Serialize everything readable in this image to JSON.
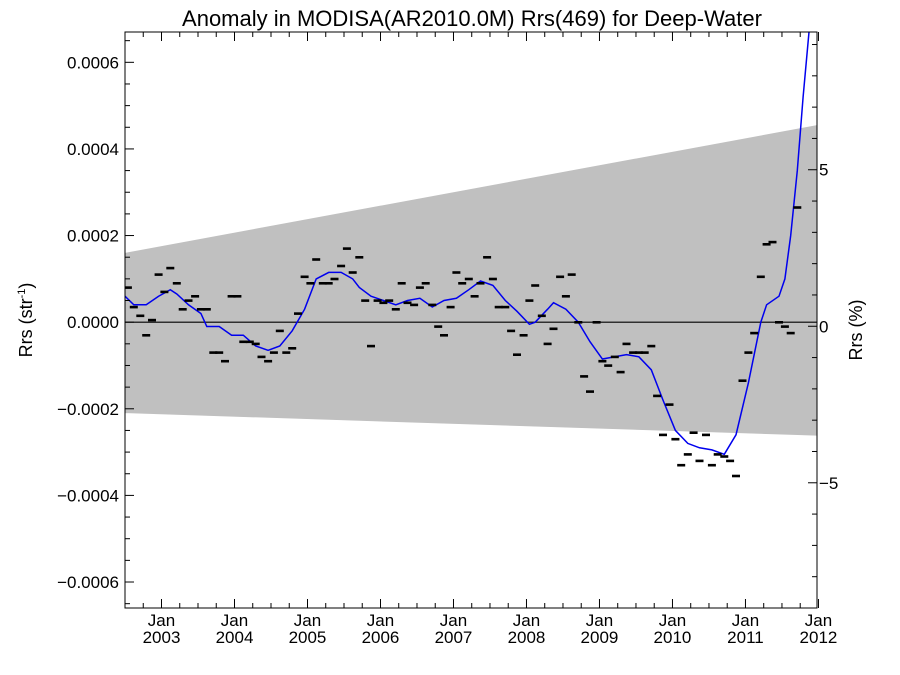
{
  "chart_data": {
    "type": "scatter",
    "title": "Anomaly in MODISA(AR2010.0M) Rrs(469) for Deep-Water",
    "ylabel_left": "Rrs (str",
    "ylabel_left_sup": "-1",
    "ylabel_left_close": ")",
    "ylabel_right": "Rrs (%)",
    "x_range": [
      2002.5,
      2011.98
    ],
    "y_range_left": [
      -0.00066,
      0.00067
    ],
    "y_range_right": [
      -9.0,
      9.4
    ],
    "y_ticks_left": [
      {
        "value": -0.0006,
        "label": "−0.0006"
      },
      {
        "value": -0.0004,
        "label": "−0.0004"
      },
      {
        "value": -0.0002,
        "label": "−0.0002"
      },
      {
        "value": 0.0,
        "label": "0.0000"
      },
      {
        "value": 0.0002,
        "label": "0.0002"
      },
      {
        "value": 0.0004,
        "label": "0.0004"
      },
      {
        "value": 0.0006,
        "label": "0.0006"
      }
    ],
    "y_ticks_right": [
      {
        "value": -5,
        "label": "−5"
      },
      {
        "value": 0,
        "label": "0"
      },
      {
        "value": 5,
        "label": "5"
      }
    ],
    "x_ticks": [
      {
        "value": 2003.0,
        "month": "Jan",
        "year": "2003"
      },
      {
        "value": 2004.0,
        "month": "Jan",
        "year": "2004"
      },
      {
        "value": 2005.0,
        "month": "Jan",
        "year": "2005"
      },
      {
        "value": 2006.0,
        "month": "Jan",
        "year": "2006"
      },
      {
        "value": 2007.0,
        "month": "Jan",
        "year": "2007"
      },
      {
        "value": 2008.0,
        "month": "Jan",
        "year": "2008"
      },
      {
        "value": 2009.0,
        "month": "Jan",
        "year": "2009"
      },
      {
        "value": 2010.0,
        "month": "Jan",
        "year": "2010"
      },
      {
        "value": 2011.0,
        "month": "Jan",
        "year": "2011"
      },
      {
        "value": 2012.0,
        "month": "Jan",
        "year": "2012"
      }
    ],
    "band": {
      "upper": [
        [
          2002.5,
          0.00016
        ],
        [
          2011.98,
          0.000455
        ]
      ],
      "lower": [
        [
          2002.5,
          -0.00021
        ],
        [
          2011.98,
          -0.000262
        ]
      ],
      "color": "#c0c0c0"
    },
    "zero_line": true,
    "series": [
      {
        "kind": "monthly_points",
        "color": "#000000",
        "points": [
          [
            2002.54,
            8e-05
          ],
          [
            2002.62,
            3.5e-05
          ],
          [
            2002.71,
            1.5e-05
          ],
          [
            2002.79,
            -3e-05
          ],
          [
            2002.87,
            5e-06
          ],
          [
            2002.96,
            0.00011
          ],
          [
            2003.04,
            7e-05
          ],
          [
            2003.12,
            0.000125
          ],
          [
            2003.21,
            9e-05
          ],
          [
            2003.29,
            3e-05
          ],
          [
            2003.37,
            5e-05
          ],
          [
            2003.46,
            6e-05
          ],
          [
            2003.54,
            3e-05
          ],
          [
            2003.62,
            3e-05
          ],
          [
            2003.71,
            -7e-05
          ],
          [
            2003.79,
            -7e-05
          ],
          [
            2003.87,
            -9e-05
          ],
          [
            2003.96,
            6e-05
          ],
          [
            2004.04,
            6e-05
          ],
          [
            2004.12,
            -4.5e-05
          ],
          [
            2004.21,
            -4.5e-05
          ],
          [
            2004.29,
            -5e-05
          ],
          [
            2004.37,
            -8e-05
          ],
          [
            2004.46,
            -9e-05
          ],
          [
            2004.54,
            -7e-05
          ],
          [
            2004.62,
            -2e-05
          ],
          [
            2004.71,
            -7e-05
          ],
          [
            2004.79,
            -6e-05
          ],
          [
            2004.87,
            2e-05
          ],
          [
            2004.96,
            0.000105
          ],
          [
            2005.04,
            9e-05
          ],
          [
            2005.12,
            0.000145
          ],
          [
            2005.21,
            9e-05
          ],
          [
            2005.29,
            9e-05
          ],
          [
            2005.37,
            0.0001
          ],
          [
            2005.46,
            0.00013
          ],
          [
            2005.54,
            0.00017
          ],
          [
            2005.62,
            0.000115
          ],
          [
            2005.71,
            0.00015
          ],
          [
            2005.79,
            5e-05
          ],
          [
            2005.87,
            -5.5e-05
          ],
          [
            2005.96,
            5e-05
          ],
          [
            2006.04,
            4.5e-05
          ],
          [
            2006.12,
            5e-05
          ],
          [
            2006.21,
            3e-05
          ],
          [
            2006.29,
            9e-05
          ],
          [
            2006.37,
            4.5e-05
          ],
          [
            2006.46,
            4e-05
          ],
          [
            2006.54,
            8e-05
          ],
          [
            2006.62,
            9e-05
          ],
          [
            2006.71,
            4e-05
          ],
          [
            2006.79,
            -1e-05
          ],
          [
            2006.87,
            -3e-05
          ],
          [
            2006.96,
            3.5e-05
          ],
          [
            2007.04,
            0.000115
          ],
          [
            2007.12,
            9e-05
          ],
          [
            2007.21,
            0.0001
          ],
          [
            2007.29,
            6e-05
          ],
          [
            2007.37,
            9e-05
          ],
          [
            2007.46,
            0.00015
          ],
          [
            2007.54,
            0.0001
          ],
          [
            2007.62,
            3.5e-05
          ],
          [
            2007.71,
            3.5e-05
          ],
          [
            2007.79,
            -2e-05
          ],
          [
            2007.87,
            -7.5e-05
          ],
          [
            2007.96,
            -3e-05
          ],
          [
            2008.04,
            5e-05
          ],
          [
            2008.12,
            8.5e-05
          ],
          [
            2008.21,
            1.5e-05
          ],
          [
            2008.29,
            -5e-05
          ],
          [
            2008.37,
            -1.5e-05
          ],
          [
            2008.46,
            0.000105
          ],
          [
            2008.54,
            6e-05
          ],
          [
            2008.62,
            0.00011
          ],
          [
            2008.71,
            0.0
          ],
          [
            2008.79,
            -0.000125
          ],
          [
            2008.87,
            -0.00016
          ],
          [
            2008.96,
            0.0
          ],
          [
            2009.04,
            -9e-05
          ],
          [
            2009.12,
            -0.0001
          ],
          [
            2009.21,
            -8e-05
          ],
          [
            2009.29,
            -0.000115
          ],
          [
            2009.37,
            -5e-05
          ],
          [
            2009.46,
            -7e-05
          ],
          [
            2009.54,
            -7e-05
          ],
          [
            2009.62,
            -7e-05
          ],
          [
            2009.71,
            -5.5e-05
          ],
          [
            2009.79,
            -0.00017
          ],
          [
            2009.87,
            -0.00026
          ],
          [
            2009.96,
            -0.00019
          ],
          [
            2010.04,
            -0.00027
          ],
          [
            2010.12,
            -0.00033
          ],
          [
            2010.21,
            -0.000305
          ],
          [
            2010.29,
            -0.000255
          ],
          [
            2010.37,
            -0.00032
          ],
          [
            2010.46,
            -0.00026
          ],
          [
            2010.54,
            -0.00033
          ],
          [
            2010.62,
            -0.000305
          ],
          [
            2010.71,
            -0.00031
          ],
          [
            2010.79,
            -0.00032
          ],
          [
            2010.87,
            -0.000355
          ],
          [
            2010.96,
            -0.000135
          ],
          [
            2011.04,
            -7e-05
          ],
          [
            2011.12,
            -2.5e-05
          ],
          [
            2011.21,
            0.000105
          ],
          [
            2011.29,
            0.00018
          ],
          [
            2011.37,
            0.000185
          ],
          [
            2011.46,
            0.0
          ],
          [
            2011.54,
            -1e-05
          ],
          [
            2011.62,
            -2.5e-05
          ],
          [
            2011.71,
            0.000265
          ]
        ]
      },
      {
        "kind": "smoothed_line",
        "color": "#0000ee",
        "points": [
          [
            2002.5,
            6e-05
          ],
          [
            2002.62,
            4e-05
          ],
          [
            2002.79,
            4e-05
          ],
          [
            2002.96,
            6e-05
          ],
          [
            2003.12,
            7.5e-05
          ],
          [
            2003.21,
            6.5e-05
          ],
          [
            2003.37,
            4e-05
          ],
          [
            2003.54,
            2e-05
          ],
          [
            2003.62,
            -1e-05
          ],
          [
            2003.79,
            -1e-05
          ],
          [
            2003.96,
            -3e-05
          ],
          [
            2004.12,
            -3e-05
          ],
          [
            2004.29,
            -5.5e-05
          ],
          [
            2004.46,
            -6.5e-05
          ],
          [
            2004.62,
            -5.5e-05
          ],
          [
            2004.79,
            -2e-05
          ],
          [
            2004.96,
            3e-05
          ],
          [
            2005.12,
            0.0001
          ],
          [
            2005.29,
            0.000115
          ],
          [
            2005.46,
            0.000115
          ],
          [
            2005.62,
            0.0001
          ],
          [
            2005.71,
            8e-05
          ],
          [
            2005.87,
            6e-05
          ],
          [
            2006.04,
            5e-05
          ],
          [
            2006.21,
            4e-05
          ],
          [
            2006.37,
            5e-05
          ],
          [
            2006.54,
            5.5e-05
          ],
          [
            2006.71,
            3.5e-05
          ],
          [
            2006.87,
            5e-05
          ],
          [
            2007.04,
            5.5e-05
          ],
          [
            2007.21,
            7.5e-05
          ],
          [
            2007.37,
            9.5e-05
          ],
          [
            2007.54,
            8.5e-05
          ],
          [
            2007.71,
            5e-05
          ],
          [
            2007.87,
            2.5e-05
          ],
          [
            2008.04,
            -5e-06
          ],
          [
            2008.12,
            0.0
          ],
          [
            2008.29,
            3e-05
          ],
          [
            2008.37,
            4.5e-05
          ],
          [
            2008.54,
            3e-05
          ],
          [
            2008.71,
            0.0
          ],
          [
            2008.87,
            -4.5e-05
          ],
          [
            2009.04,
            -8.5e-05
          ],
          [
            2009.21,
            -8e-05
          ],
          [
            2009.37,
            -7.5e-05
          ],
          [
            2009.54,
            -8e-05
          ],
          [
            2009.71,
            -0.00011
          ],
          [
            2009.87,
            -0.00018
          ],
          [
            2010.04,
            -0.00025
          ],
          [
            2010.21,
            -0.00028
          ],
          [
            2010.37,
            -0.00029
          ],
          [
            2010.54,
            -0.000295
          ],
          [
            2010.71,
            -0.000305
          ],
          [
            2010.87,
            -0.00026
          ],
          [
            2011.04,
            -0.00014
          ],
          [
            2011.21,
            0.0
          ],
          [
            2011.29,
            4e-05
          ],
          [
            2011.46,
            6e-05
          ],
          [
            2011.54,
            0.0001
          ],
          [
            2011.62,
            0.0002
          ],
          [
            2011.71,
            0.00035
          ],
          [
            2011.79,
            0.00052
          ],
          [
            2011.87,
            0.00067
          ]
        ]
      }
    ]
  }
}
